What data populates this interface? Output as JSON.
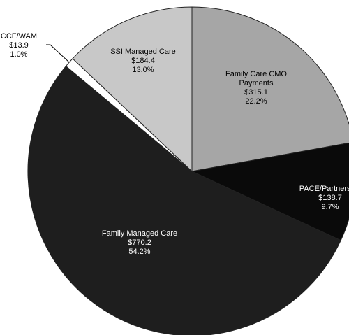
{
  "chart_data": {
    "type": "pie",
    "categories": [
      "Family Care CMO Payments",
      "PACE/Partnership",
      "Family Managed Care",
      "CCF/WAM",
      "SSI Managed Care"
    ],
    "values": [
      315.1,
      138.7,
      770.2,
      13.9,
      184.4
    ],
    "value_labels": [
      "$315.1",
      "$138.7",
      "$770.2",
      "$13.9",
      "$184.4"
    ],
    "percents": [
      22.2,
      9.7,
      54.2,
      1.0,
      13.0
    ],
    "percent_labels": [
      "22.2%",
      "9.7%",
      "54.2%",
      "1.0%",
      "13.0%"
    ],
    "colors": [
      "#a6a6a6",
      "#0a0a0a",
      "#1e1e1e",
      "#ffffff",
      "#c8c8c8"
    ]
  }
}
